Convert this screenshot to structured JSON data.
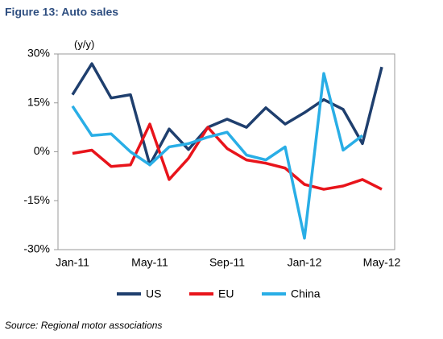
{
  "chart_data": {
    "type": "line",
    "title": "Figure 13: Auto sales",
    "y_label": "(y/y)",
    "source": "Source: Regional motor associations",
    "categories": [
      "Jan-11",
      null,
      null,
      null,
      "May-11",
      null,
      null,
      null,
      "Sep-11",
      null,
      null,
      null,
      "Jan-12",
      null,
      null,
      null,
      "May-12"
    ],
    "series": [
      {
        "name": "US",
        "color": "#1f3f6e",
        "values": [
          17.5,
          27,
          16.5,
          17.5,
          -4,
          7,
          0.7,
          7.5,
          10,
          7.5,
          13.5,
          8.5,
          12,
          16,
          13,
          2.5,
          26
        ]
      },
      {
        "name": "EU",
        "color": "#e8141b",
        "values": [
          -0.5,
          0.5,
          -4.5,
          -4,
          8.5,
          -8.5,
          -2,
          7.5,
          1,
          -2.5,
          -3.5,
          -5,
          -10,
          -11.5,
          -10.5,
          -8.5,
          -11.5
        ]
      },
      {
        "name": "China",
        "color": "#29aee6",
        "values": [
          14,
          5,
          5.5,
          0,
          -4,
          1.5,
          2.5,
          4.5,
          6,
          -1,
          -2.5,
          1.5,
          -26.5,
          24,
          0.5,
          5,
          null
        ]
      }
    ],
    "ylim": [
      -30,
      30
    ],
    "yticks": [
      {
        "value": -30,
        "label": "-30%"
      },
      {
        "value": -15,
        "label": "-15%"
      },
      {
        "value": 0,
        "label": "0%"
      },
      {
        "value": 15,
        "label": "15%"
      },
      {
        "value": 30,
        "label": "30%"
      }
    ]
  }
}
